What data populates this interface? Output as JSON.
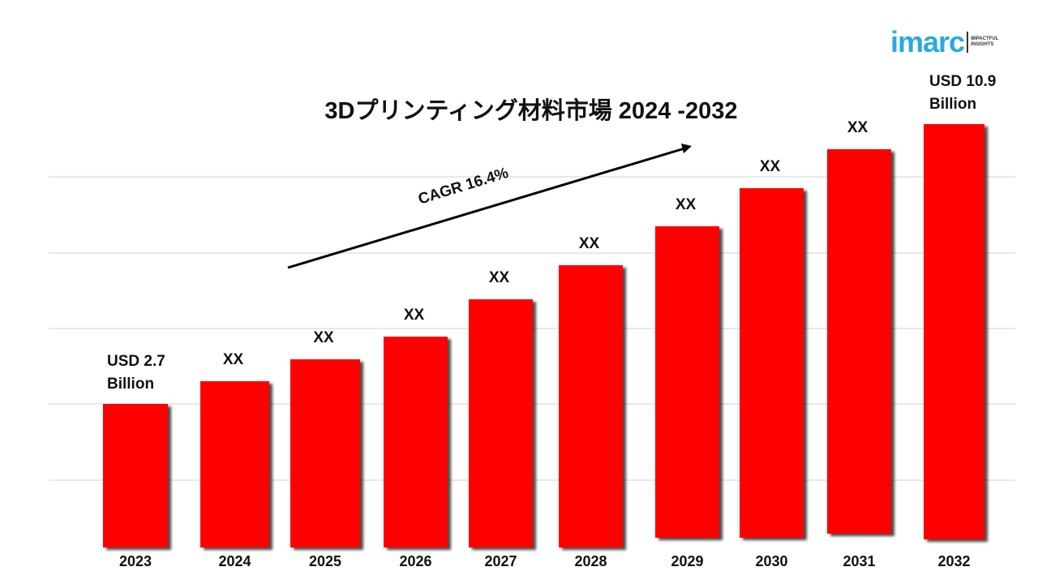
{
  "chart_data": {
    "type": "bar",
    "title": "3Dプリンティング材料市場 2024 -2032",
    "categories": [
      "2023",
      "2024",
      "2025",
      "2026",
      "2027",
      "2028",
      "2029",
      "2030",
      "2031",
      "2032"
    ],
    "data_labels": [
      "USD 2.7 Billion",
      "XX",
      "XX",
      "XX",
      "XX",
      "XX",
      "XX",
      "XX",
      "XX",
      "USD 10.9 Billion"
    ],
    "values": [
      2.7,
      null,
      null,
      null,
      null,
      null,
      null,
      null,
      null,
      10.9
    ],
    "unit": "USD Billion",
    "annotation": "CAGR 16.4%",
    "grid": true,
    "bar_color": "#ff0000",
    "xlabel": "",
    "ylabel": ""
  },
  "logo": {
    "text": "imarc",
    "tagline_1": "IMPACTFUL",
    "tagline_2": "INSIGHTS",
    "color": "#29a9e0"
  }
}
